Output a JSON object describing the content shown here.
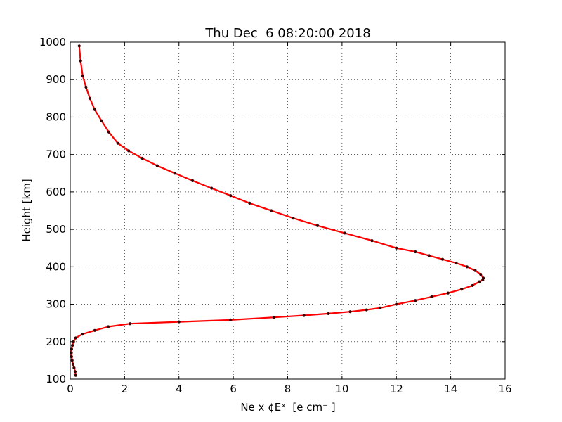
{
  "chart_data": {
    "type": "line",
    "title": "Thu Dec  6 08:20:00 2018",
    "xlabel": "Ne x ¢Eˣ  [e cm⁻ ]",
    "ylabel": "Height [km]",
    "xlim": [
      0,
      16
    ],
    "ylim": [
      100,
      1000
    ],
    "xticks": [
      "0",
      "2",
      "4",
      "6",
      "8",
      "10",
      "12",
      "14",
      "16"
    ],
    "yticks": [
      "100",
      "200",
      "300",
      "400",
      "500",
      "600",
      "700",
      "800",
      "900",
      "1000"
    ],
    "grid": true,
    "colors": {
      "line": "#ff0000",
      "marker": "#3a0000"
    },
    "series": [
      {
        "x": [
          0.2,
          0.18,
          0.14,
          0.1,
          0.07,
          0.05,
          0.04,
          0.05,
          0.08,
          0.12,
          0.2,
          0.45,
          0.9,
          1.4,
          2.2,
          4.0,
          5.9,
          7.5,
          8.6,
          9.5,
          10.3,
          10.9,
          11.4,
          12.0,
          12.7,
          13.3,
          13.9,
          14.4,
          14.8,
          15.05,
          15.18,
          15.2,
          15.1,
          14.9,
          14.6,
          14.2,
          13.7,
          13.2,
          12.7,
          12.0,
          11.1,
          10.1,
          9.1,
          8.2,
          7.4,
          6.6,
          5.9,
          5.2,
          4.5,
          3.85,
          3.2,
          2.65,
          2.15,
          1.75,
          1.42,
          1.15,
          0.9,
          0.72,
          0.58,
          0.46,
          0.38,
          0.33
        ],
        "y": [
          110,
          120,
          130,
          140,
          150,
          160,
          170,
          180,
          190,
          200,
          210,
          220,
          230,
          240,
          248,
          253,
          258,
          265,
          270,
          275,
          280,
          285,
          290,
          300,
          310,
          320,
          330,
          340,
          350,
          360,
          365,
          370,
          380,
          390,
          400,
          410,
          420,
          430,
          440,
          450,
          470,
          490,
          510,
          530,
          550,
          570,
          590,
          610,
          630,
          650,
          670,
          690,
          710,
          730,
          760,
          790,
          820,
          850,
          880,
          910,
          950,
          990
        ]
      }
    ]
  }
}
